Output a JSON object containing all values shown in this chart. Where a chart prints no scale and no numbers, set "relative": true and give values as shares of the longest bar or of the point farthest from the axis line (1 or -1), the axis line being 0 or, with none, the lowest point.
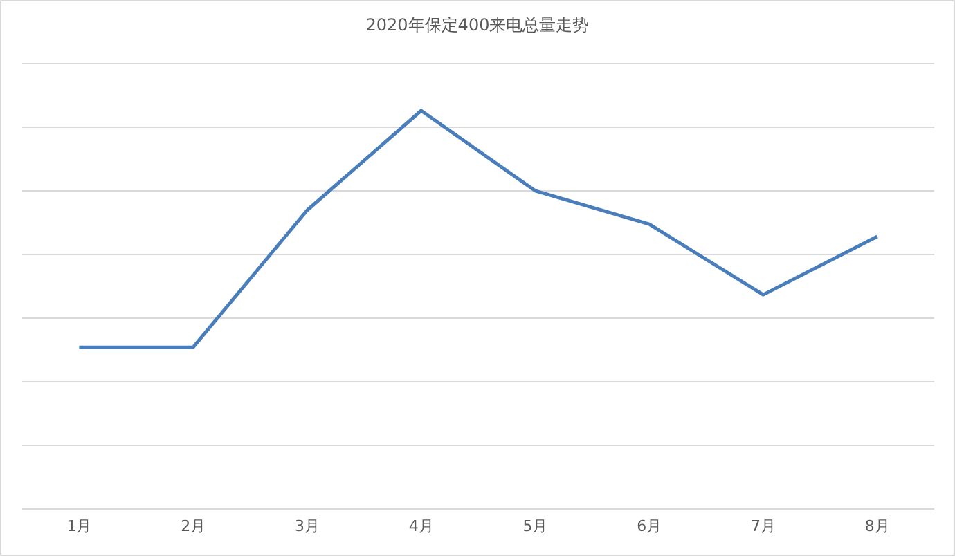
{
  "chart_data": {
    "type": "line",
    "title": "2020年保定400来电总量走势",
    "relative": true,
    "categories": [
      "1月",
      "2月",
      "3月",
      "4月",
      "5月",
      "6月",
      "7月",
      "8月"
    ],
    "series": [
      {
        "color": "#4a7ebb",
        "values": [
          0.406,
          0.406,
          0.75,
          1,
          0.799,
          0.715,
          0.538,
          0.684
        ]
      }
    ],
    "grid": "y",
    "marker": "none",
    "line_style": "solid"
  }
}
